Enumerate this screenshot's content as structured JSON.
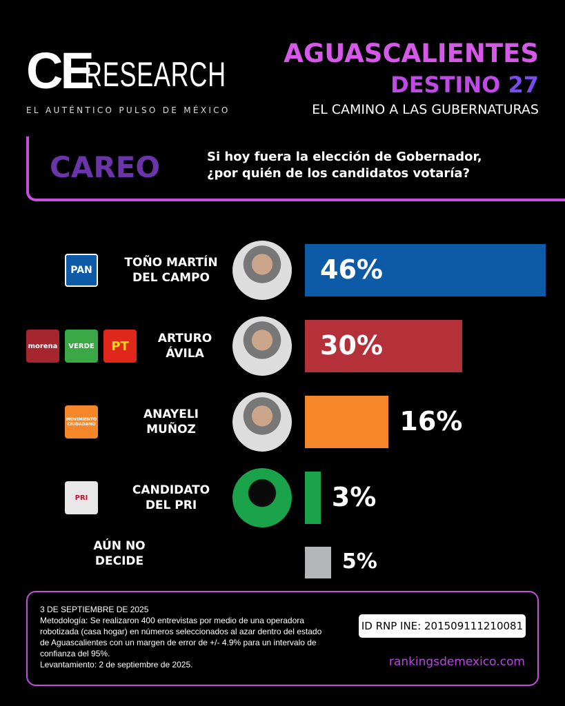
{
  "header": {
    "logo_ce": "CE",
    "logo_research": "RESEARCH",
    "tagline": "EL AUTÉNTICO PULSO DE MÉXICO",
    "title": "AGUASCALIENTES",
    "subtitle_word": "DESTINO",
    "subtitle_num": "27",
    "subtitle2": "EL CAMINO A LAS GUBERNATURAS"
  },
  "careo": {
    "label": "CAREO",
    "question_l1": "Si hoy fuera la elección de Gobernador,",
    "question_l2": "¿por quién de los candidatos votaría?"
  },
  "chart_data": {
    "type": "bar",
    "orientation": "horizontal",
    "categories": [
      "TOÑO MARTÍN DEL CAMPO",
      "ARTURO ÁVILA",
      "ANAYELI MUÑOZ",
      "CANDIDATO DEL PRI",
      "AÚN NO DECIDE"
    ],
    "values": [
      46,
      30,
      16,
      3,
      5
    ],
    "labels": [
      "46%",
      "30%",
      "16%",
      "3%",
      "5%"
    ],
    "colors": [
      "#0d5aa7",
      "#b5313a",
      "#f5872a",
      "#1aa34a",
      "#b5b6b8"
    ],
    "rows": [
      {
        "name_l1": "TOÑO MARTÍN",
        "name_l2": "DEL CAMPO",
        "parties": [
          "PAN"
        ]
      },
      {
        "name_l1": "ARTURO",
        "name_l2": "ÁVILA",
        "parties": [
          "morena",
          "VERDE",
          "PT"
        ]
      },
      {
        "name_l1": "ANAYELI",
        "name_l2": "MUÑOZ",
        "parties": [
          "MOVIMIENTO CIUDADANO"
        ]
      },
      {
        "name_l1": "CANDIDATO",
        "name_l2": "DEL PRI",
        "parties": [
          "PRI"
        ]
      },
      {
        "name_l1": "AÚN NO",
        "name_l2": "DECIDE",
        "parties": []
      }
    ]
  },
  "footer": {
    "date": "3 DE SEPTIEMBRE DE 2025",
    "methodology": "Metodología: Se realizaron 400 entrevistas por medio de una operadora robotizada (casa hogar) en números seleccionados al azar dentro del estado de Aguascalientes con un margen de error de +/- 4.9% para un intervalo de confianza del 95%.",
    "fieldwork": "Levantamiento: 2 de septiembre de 2025.",
    "rnp": "ID RNP INE: 201509111210081",
    "url": "rankingsdemexico.com"
  }
}
